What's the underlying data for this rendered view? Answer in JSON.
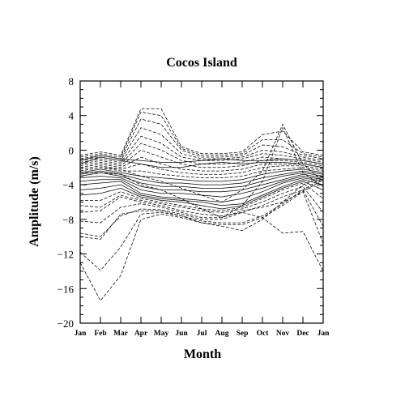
{
  "chart_data": {
    "type": "line",
    "title": "Cocos Island",
    "xlabel": "Month",
    "ylabel": "Amplitude (m/s)",
    "categories": [
      "Jan",
      "Feb",
      "Mar",
      "Apr",
      "May",
      "Jun",
      "Jul",
      "Aug",
      "Sep",
      "Oct",
      "Nov",
      "Dec",
      "Jan"
    ],
    "ylim": [
      -20,
      8
    ],
    "yticks": [
      8,
      4,
      0,
      -4,
      -8,
      -12,
      -16,
      -20
    ],
    "ytick_labels": [
      "8",
      "4",
      "0",
      "−4",
      "−8",
      "−12",
      "−16",
      "−20"
    ],
    "grid": false,
    "legend": "none",
    "line_color": "#000000",
    "series": [
      {
        "values": [
          -13.0,
          -17.4,
          -14.5,
          -8.0,
          -7.4,
          -7.8,
          -8.4,
          -8.6,
          -8.6,
          -7.8,
          -6.4,
          -4.8,
          -3.4
        ],
        "style": "dashed"
      },
      {
        "values": [
          -11.8,
          -13.9,
          -11.2,
          -7.4,
          -7.2,
          -7.6,
          -8.2,
          -8.4,
          -8.4,
          -7.6,
          -6.2,
          -4.6,
          -3.2
        ],
        "style": "dashed"
      },
      {
        "values": [
          -10.0,
          -10.3,
          -7.4,
          -7.0,
          -7.0,
          -7.6,
          -8.4,
          -8.8,
          -9.3,
          -8.0,
          -6.0,
          -4.0,
          -3.0
        ],
        "style": "dashed"
      },
      {
        "values": [
          -9.6,
          -10.0,
          -7.6,
          -6.8,
          -6.9,
          -7.4,
          -8.0,
          -8.0,
          -7.2,
          -7.8,
          -9.6,
          -9.4,
          -14.0
        ],
        "style": "dashed"
      },
      {
        "values": [
          -8.2,
          -8.4,
          -6.6,
          -6.2,
          -6.6,
          -7.2,
          -7.8,
          -7.8,
          -7.0,
          -6.6,
          -6.0,
          -4.8,
          -10.8
        ],
        "style": "dashed"
      },
      {
        "values": [
          -7.2,
          -7.0,
          -5.4,
          -6.0,
          -6.4,
          -7.0,
          -7.4,
          -7.6,
          -7.2,
          -6.4,
          -5.4,
          -4.6,
          -8.8
        ],
        "style": "dashed"
      },
      {
        "values": [
          -6.4,
          -6.6,
          -5.2,
          -5.8,
          -6.2,
          -6.6,
          -7.0,
          -7.2,
          -6.8,
          -6.0,
          -5.0,
          -4.2,
          -7.2
        ],
        "style": "dashed"
      },
      {
        "values": [
          -5.8,
          -5.8,
          -4.8,
          -5.6,
          -6.0,
          -6.4,
          -6.8,
          -7.0,
          -6.6,
          -5.6,
          -4.6,
          -3.8,
          -5.6
        ],
        "style": "dashed"
      },
      {
        "values": [
          -5.2,
          -5.0,
          -4.4,
          -5.4,
          -5.8,
          -6.0,
          -6.4,
          -6.8,
          -6.4,
          -5.4,
          -4.4,
          -3.6,
          -4.6
        ],
        "style": "solid"
      },
      {
        "values": [
          -4.6,
          -4.4,
          -4.0,
          -5.2,
          -5.6,
          -5.8,
          -6.0,
          -6.4,
          -6.2,
          -5.2,
          -4.2,
          -3.4,
          -4.0
        ],
        "style": "solid"
      },
      {
        "values": [
          -4.0,
          -3.8,
          -3.6,
          -5.0,
          -5.4,
          -5.6,
          -5.8,
          -6.0,
          -5.6,
          -4.8,
          -3.8,
          -3.2,
          -3.6
        ],
        "style": "solid"
      },
      {
        "values": [
          -3.6,
          -3.4,
          -3.4,
          -4.6,
          -5.0,
          -5.0,
          -5.2,
          -5.4,
          -5.0,
          -4.4,
          -3.6,
          -3.0,
          -3.4
        ],
        "style": "solid"
      },
      {
        "values": [
          -3.2,
          -3.0,
          -3.2,
          -4.2,
          -4.6,
          -4.6,
          -4.8,
          -4.8,
          -4.6,
          -4.0,
          -3.4,
          -2.8,
          -3.2
        ],
        "style": "solid"
      },
      {
        "values": [
          -3.0,
          -2.6,
          -3.0,
          -3.8,
          -4.2,
          -4.2,
          -4.4,
          -4.4,
          -4.2,
          -3.6,
          -3.0,
          -2.6,
          -3.0
        ],
        "style": "solid"
      },
      {
        "values": [
          -2.8,
          -2.4,
          -2.8,
          -3.4,
          -3.8,
          -3.8,
          -4.0,
          -4.0,
          -3.8,
          -3.2,
          -2.8,
          -2.4,
          -2.8
        ],
        "style": "solid"
      },
      {
        "values": [
          -2.6,
          -2.2,
          -2.6,
          -3.0,
          -3.2,
          -3.4,
          -3.6,
          -3.6,
          -3.4,
          -2.8,
          -2.4,
          -2.2,
          -2.6
        ],
        "style": "solid"
      },
      {
        "values": [
          -2.4,
          -2.0,
          -2.4,
          -2.4,
          -2.8,
          -3.0,
          -3.2,
          -3.2,
          -3.0,
          -2.4,
          -2.2,
          -2.0,
          -2.4
        ],
        "style": "dashed"
      },
      {
        "values": [
          -2.2,
          -1.8,
          -2.2,
          -1.6,
          -2.2,
          -2.6,
          -2.8,
          -2.8,
          -2.6,
          -2.0,
          -1.8,
          -1.8,
          -2.2
        ],
        "style": "dashed"
      },
      {
        "values": [
          -2.0,
          -1.6,
          -2.0,
          -0.8,
          -1.6,
          -2.2,
          -2.4,
          -2.4,
          -2.2,
          -1.6,
          -1.6,
          -1.6,
          -2.0
        ],
        "style": "dashed"
      },
      {
        "values": [
          -1.8,
          -1.4,
          -1.8,
          0.0,
          -0.8,
          -1.6,
          -2.0,
          -2.0,
          -1.8,
          -1.2,
          -1.2,
          -1.4,
          -1.8
        ],
        "style": "dashed"
      },
      {
        "values": [
          -1.6,
          -1.2,
          -1.6,
          0.8,
          0.0,
          -1.2,
          -1.6,
          -1.6,
          -1.4,
          -0.8,
          -1.0,
          -1.2,
          -1.6
        ],
        "style": "dashed"
      },
      {
        "values": [
          -1.4,
          -1.0,
          -1.4,
          1.6,
          0.8,
          -0.8,
          -1.2,
          -1.2,
          -1.0,
          -0.4,
          -0.6,
          -1.0,
          -1.4
        ],
        "style": "dashed"
      },
      {
        "values": [
          -1.2,
          -0.8,
          -1.2,
          2.6,
          1.8,
          -0.4,
          -1.0,
          -1.0,
          -0.8,
          0.0,
          -0.2,
          -0.8,
          -1.2
        ],
        "style": "dashed"
      },
      {
        "values": [
          -1.0,
          -0.6,
          -1.0,
          3.6,
          3.0,
          0.0,
          -0.8,
          -0.8,
          -0.6,
          0.6,
          0.4,
          -0.6,
          -1.0
        ],
        "style": "dashed"
      },
      {
        "values": [
          -0.8,
          -0.4,
          -0.8,
          4.4,
          4.0,
          0.2,
          -0.6,
          -0.6,
          -0.4,
          1.2,
          1.2,
          -0.4,
          -0.8
        ],
        "style": "dashed"
      },
      {
        "values": [
          -0.6,
          -0.2,
          -0.6,
          4.8,
          4.8,
          0.4,
          -0.4,
          -0.4,
          -0.2,
          1.8,
          2.2,
          -0.2,
          -0.6
        ],
        "style": "dashed"
      },
      {
        "values": [
          -1.2,
          -0.6,
          -1.0,
          -1.2,
          -1.4,
          -1.4,
          -1.2,
          -1.0,
          -1.2,
          -1.2,
          -1.0,
          -1.2,
          -1.6
        ],
        "style": "solid"
      },
      {
        "values": [
          -1.6,
          -0.8,
          -1.2,
          -1.6,
          -2.0,
          -2.0,
          -1.6,
          -1.4,
          -1.6,
          -1.4,
          -1.4,
          -1.6,
          -2.0
        ],
        "style": "solid"
      },
      {
        "values": [
          -2.6,
          -2.6,
          -2.8,
          -4.0,
          -4.6,
          -5.6,
          -6.8,
          -7.8,
          -6.4,
          -3.6,
          2.6,
          -2.6,
          -4.2
        ],
        "style": "dashed"
      },
      {
        "values": [
          -2.4,
          -2.0,
          -2.2,
          -3.0,
          -3.6,
          -4.4,
          -5.2,
          -6.0,
          -4.6,
          -2.4,
          3.0,
          -1.6,
          -3.6
        ],
        "style": "dashed"
      }
    ]
  }
}
